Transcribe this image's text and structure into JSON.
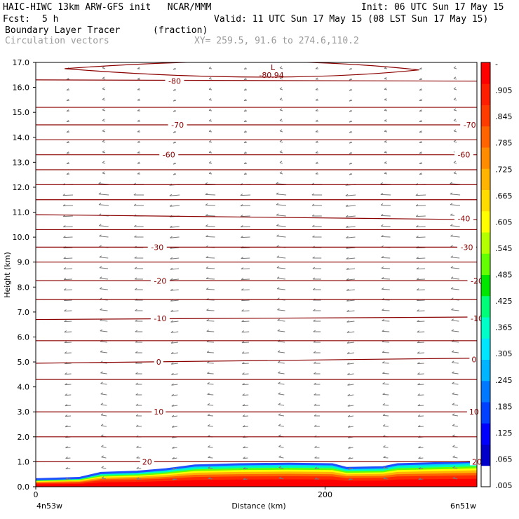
{
  "header": {
    "model": "HAIC-HIWC 13km ARW-GFS init   NCAR/MMM",
    "init": "Init: 06 UTC Sun 17 May 15",
    "fcst_label": "Fcst:",
    "fcst_value": "5 h",
    "valid": "Valid: 11 UTC Sun 17 May 15 (08 LST Sun 17 May 15)",
    "field": "Boundary Layer Tracer",
    "field_units": "(fraction)",
    "overlay": "Circulation vectors",
    "xy": "XY= 259.5, 91.6 to 274.6,110.2"
  },
  "axes": {
    "ylabel": "Height (km)",
    "xlabel": "Distance (km)",
    "left_endpoint": "4n53w",
    "right_endpoint": "6n51w"
  },
  "colors": {
    "contour": "#8b0000",
    "vector": "#7a7a7a",
    "colorbar": [
      "#ffffff",
      "#0000c8",
      "#0000ff",
      "#0041ff",
      "#0078ff",
      "#00b4ff",
      "#00e6ff",
      "#00ffc8",
      "#00ff78",
      "#00e600",
      "#64ff00",
      "#b4ff00",
      "#ffff00",
      "#ffdc00",
      "#ffb400",
      "#ff8c00",
      "#ff6400",
      "#ff3c00",
      "#ff1e00",
      "#ff0000"
    ]
  },
  "chart_data": {
    "type": "cross-section",
    "xlim": [
      0,
      305
    ],
    "ylim": [
      0,
      17
    ],
    "x_ticks": [
      0,
      200
    ],
    "x_tick_labels": [
      "0",
      "200"
    ],
    "y_ticks": [
      0,
      1,
      2,
      3,
      4,
      5,
      6,
      7,
      8,
      9,
      10,
      11,
      12,
      13,
      14,
      15,
      16,
      17
    ],
    "y_tick_labels": [
      "0.0",
      "1.0",
      "2.0",
      "3.0",
      "4.0",
      "5.0",
      "6.0",
      "7.0",
      "8.0",
      "9.0",
      "10.0",
      "11.0",
      "12.0",
      "13.0",
      "14.0",
      "15.0",
      "16.0",
      "17.0"
    ],
    "colorbar_labels": [
      "-",
      ".905",
      ".845",
      ".785",
      ".725",
      ".665",
      ".605",
      ".545",
      ".485",
      ".425",
      ".365",
      ".305",
      ".245",
      ".185",
      ".125",
      ".065",
      ".005"
    ],
    "temperature_contours": [
      {
        "label": "20",
        "points": [
          [
            0,
            1.0
          ],
          [
            305,
            1.0
          ]
        ],
        "labels_at": [
          [
            77,
            1.0
          ],
          [
            305,
            1.0
          ]
        ]
      },
      {
        "label": "10",
        "points": [
          [
            0,
            3.0
          ],
          [
            305,
            3.0
          ]
        ],
        "labels_at": [
          [
            85,
            3.0
          ],
          [
            303,
            3.0
          ]
        ]
      },
      {
        "label": "0",
        "points": [
          [
            0,
            4.95
          ],
          [
            300,
            5.15
          ]
        ],
        "labels_at": [
          [
            85,
            5.0
          ],
          [
            303,
            5.1
          ]
        ]
      },
      {
        "label": "-10",
        "points": [
          [
            0,
            6.7
          ],
          [
            305,
            6.8
          ]
        ],
        "labels_at": [
          [
            86,
            6.75
          ],
          [
            305,
            6.75
          ]
        ]
      },
      {
        "label": "-20",
        "points": [
          [
            0,
            8.25
          ],
          [
            305,
            8.25
          ]
        ],
        "labels_at": [
          [
            86,
            8.25
          ],
          [
            305,
            8.25
          ]
        ]
      },
      {
        "label": "-30",
        "points": [
          [
            0,
            9.6
          ],
          [
            305,
            9.6
          ]
        ],
        "labels_at": [
          [
            84,
            9.6
          ],
          [
            298,
            9.6
          ]
        ]
      },
      {
        "label": "-40",
        "points": [
          [
            0,
            10.9
          ],
          [
            305,
            10.7
          ]
        ],
        "labels_at": [
          [
            296,
            10.75
          ]
        ]
      },
      {
        "label": "-60",
        "points": [
          [
            0,
            13.3
          ],
          [
            305,
            13.3
          ]
        ],
        "labels_at": [
          [
            92,
            13.3
          ],
          [
            296,
            13.3
          ]
        ]
      },
      {
        "label": "-70",
        "points": [
          [
            0,
            14.5
          ],
          [
            305,
            14.5
          ]
        ],
        "labels_at": [
          [
            98,
            14.5
          ],
          [
            300,
            14.5
          ]
        ]
      },
      {
        "label": "-80",
        "points": [
          [
            0,
            16.3
          ],
          [
            305,
            16.25
          ]
        ],
        "labels_at": [
          [
            96,
            16.25
          ]
        ]
      }
    ],
    "unlabeled_contours": [
      2.0,
      4.3,
      5.85,
      7.5,
      9.0,
      10.3,
      11.5,
      12.1,
      12.7,
      13.9,
      15.2
    ],
    "minimum": {
      "label": "L",
      "value": "-80.94",
      "x": 162,
      "y": 16.75
    },
    "tracer_layer": {
      "description_levels": [
        ".005",
        ".065",
        ".125",
        ".185",
        ".245",
        ".305",
        ".365",
        ".425",
        ".485",
        ".545",
        ".605",
        ".665",
        ".725",
        ".785",
        ".845",
        ".905"
      ],
      "top_profile_km": [
        [
          0,
          0.3
        ],
        [
          30,
          0.35
        ],
        [
          45,
          0.55
        ],
        [
          70,
          0.6
        ],
        [
          90,
          0.7
        ],
        [
          110,
          0.85
        ],
        [
          140,
          0.9
        ],
        [
          175,
          0.92
        ],
        [
          205,
          0.9
        ],
        [
          215,
          0.75
        ],
        [
          240,
          0.78
        ],
        [
          250,
          0.9
        ],
        [
          280,
          0.95
        ],
        [
          305,
          1.0
        ]
      ]
    }
  }
}
